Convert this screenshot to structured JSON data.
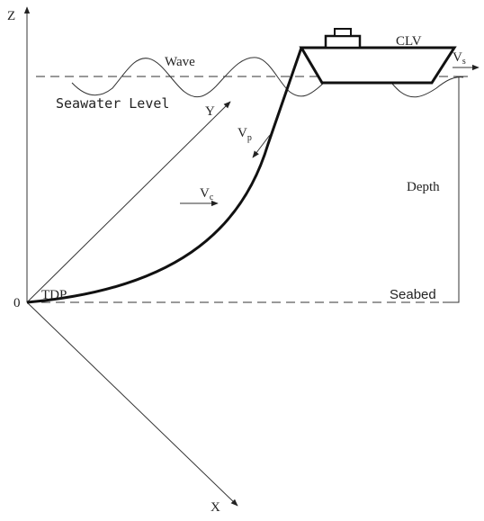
{
  "labels": {
    "z_axis": "Z",
    "y_axis": "Y",
    "x_axis": "X",
    "origin": "0",
    "tdp": "TDP",
    "wave": "Wave",
    "clv": "CLV",
    "seawater_level": "Seawater Level",
    "depth": "Depth",
    "seabed": "Seabed",
    "vs": {
      "base": "V",
      "sub": "s"
    },
    "vp": {
      "base": "V",
      "sub": "p"
    },
    "vc": {
      "base": "V",
      "sub": "c"
    }
  }
}
